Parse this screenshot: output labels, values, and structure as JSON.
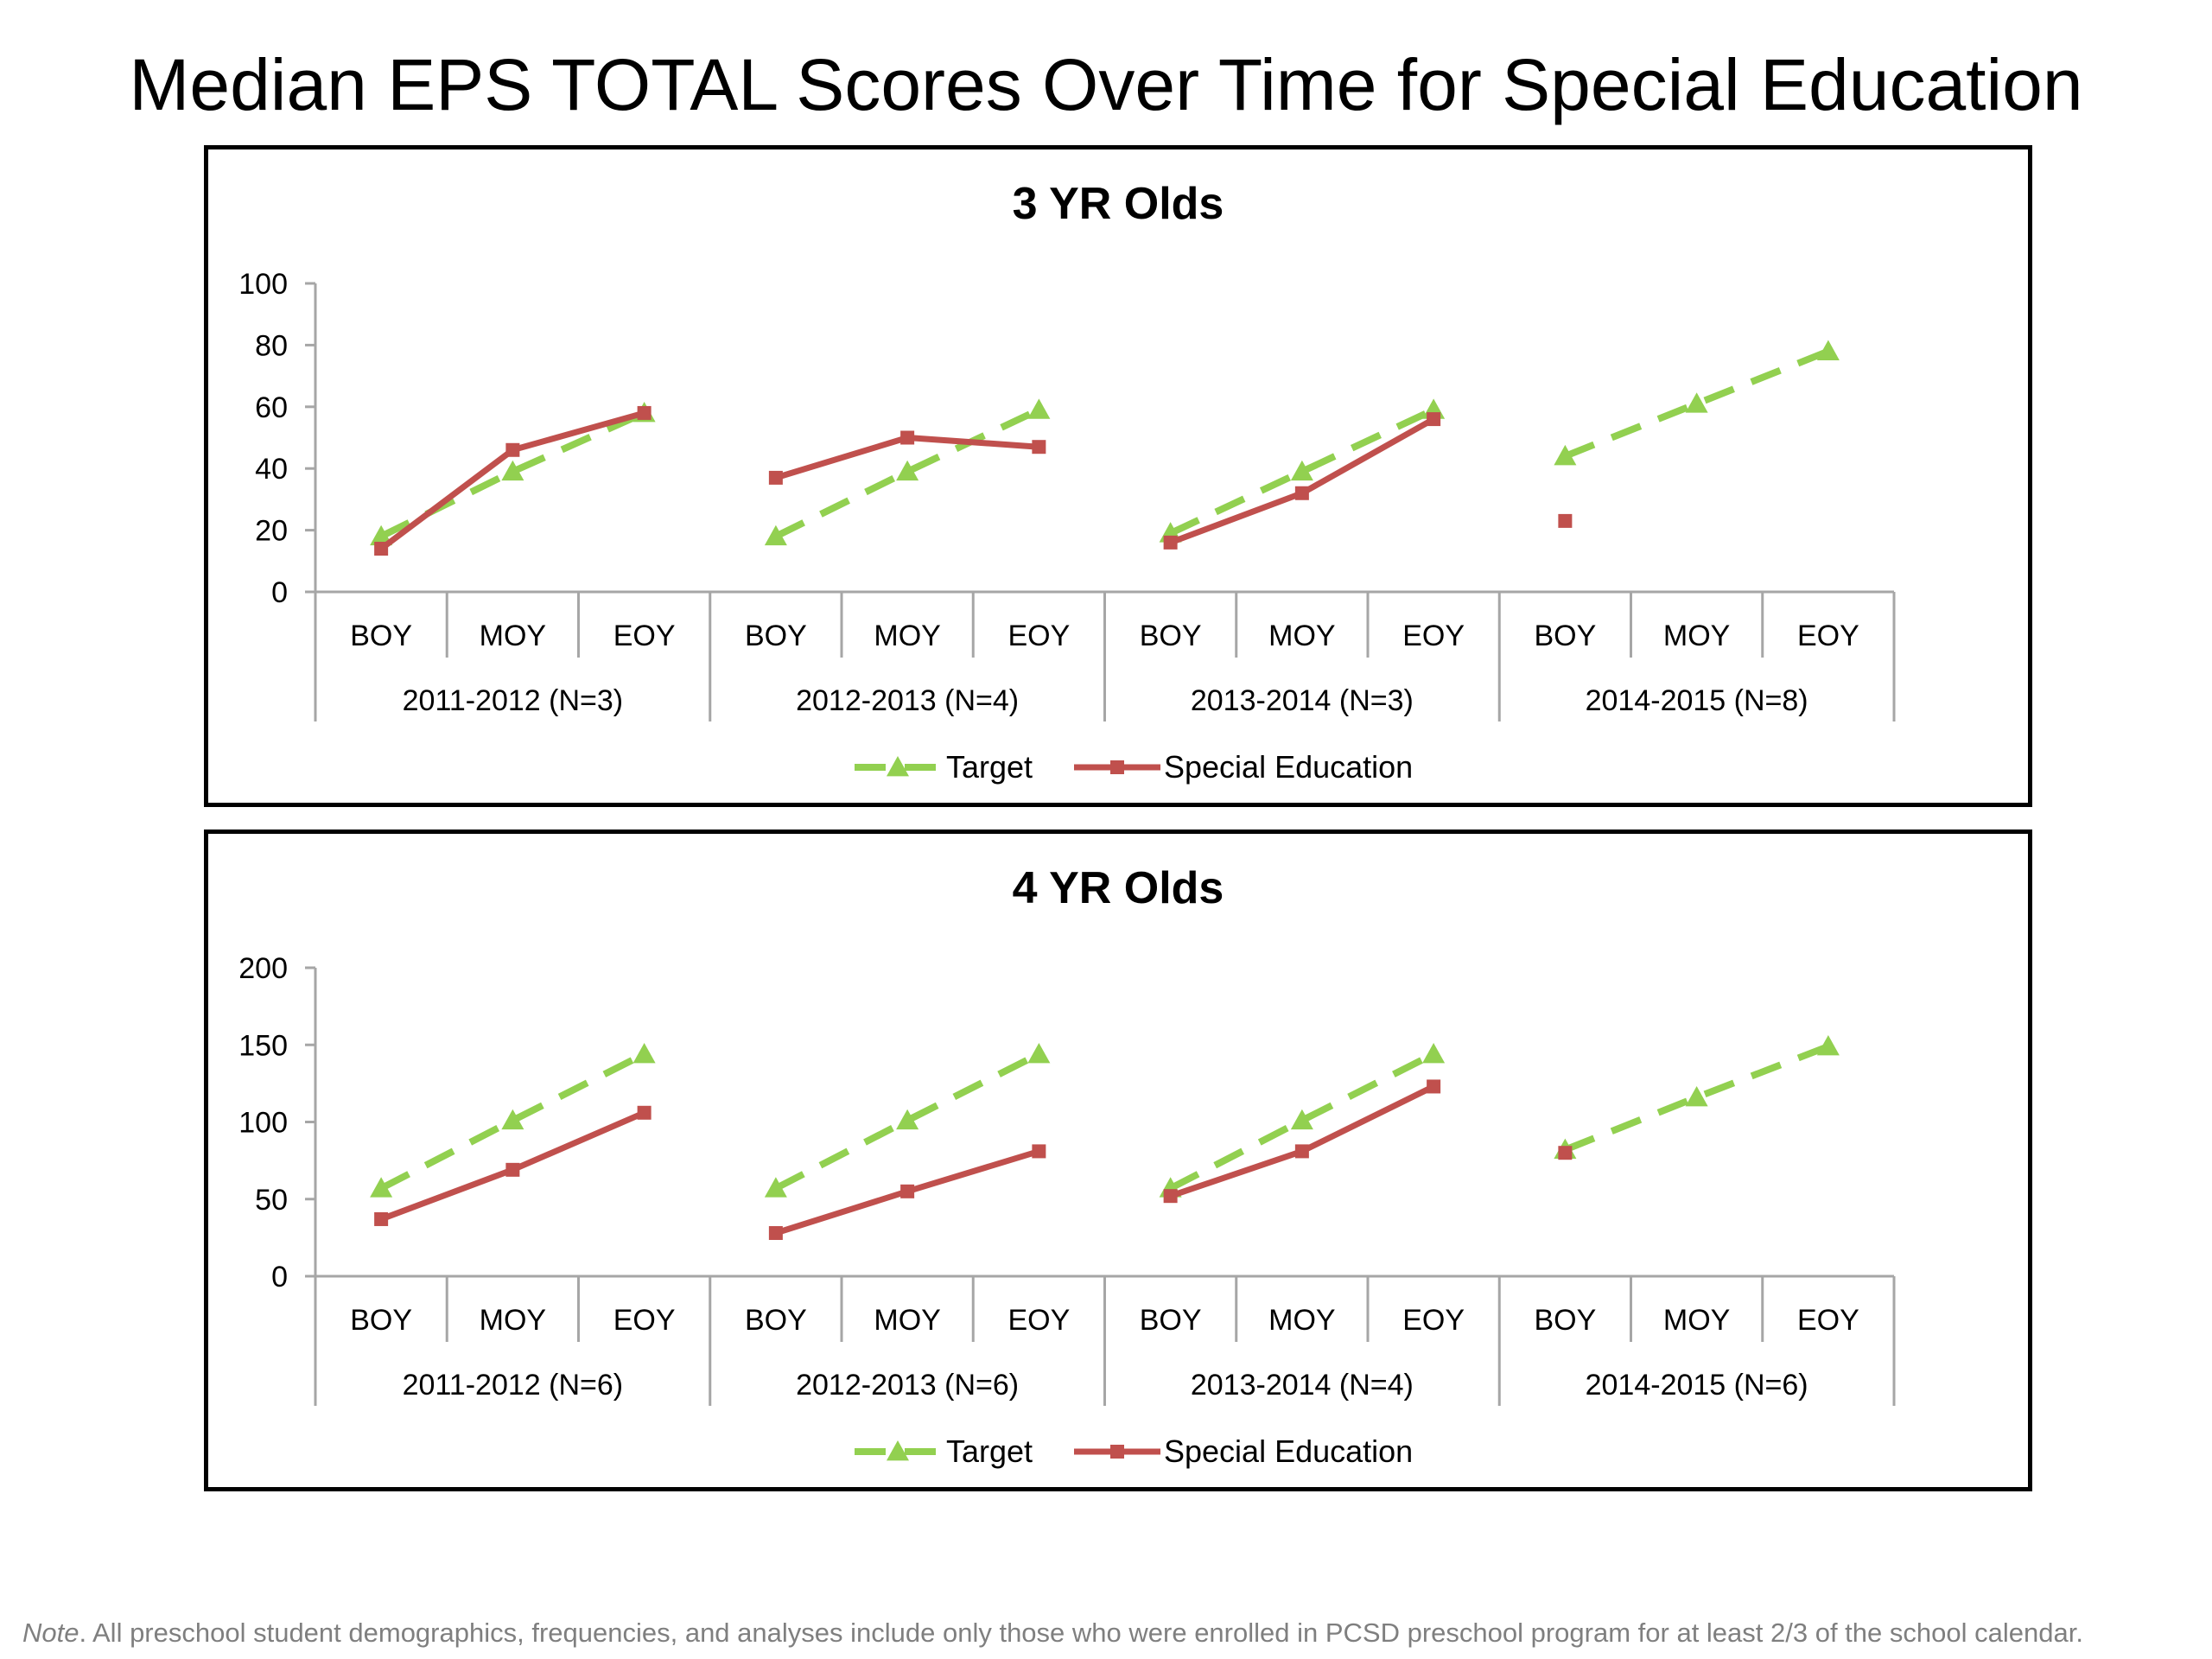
{
  "page": {
    "title": "Median EPS TOTAL Scores Over Time for Special Education",
    "footnote_prefix": "Note",
    "footnote_text": ". All preschool student demographics, frequencies, and analyses include only those who were enrolled in PCSD preschool program for at least 2/3 of the school calendar."
  },
  "colors": {
    "target": "#92D050",
    "special_education": "#C0504D",
    "axis": "#A6A6A6"
  },
  "chart_data": [
    {
      "type": "line",
      "title": "3 YR Olds",
      "categories": [
        "BOY",
        "MOY",
        "EOY",
        "BOY",
        "MOY",
        "EOY",
        "BOY",
        "MOY",
        "EOY",
        "BOY",
        "MOY",
        "EOY"
      ],
      "groups": [
        "2011-2012 (N=3)",
        "2012-2013 (N=4)",
        "2013-2014 (N=3)",
        "2014-2015 (N=8)"
      ],
      "yticks": [
        "0",
        "20",
        "40",
        "60",
        "80",
        "100"
      ],
      "ylim": [
        0,
        100
      ],
      "series": [
        {
          "name": "Target",
          "style": "dashed-triangle",
          "values": [
            18,
            39,
            58,
            18,
            39,
            59,
            19,
            39,
            59,
            44,
            61,
            78
          ]
        },
        {
          "name": "Special Education",
          "style": "solid-square",
          "values": [
            14,
            46,
            58,
            37,
            50,
            47,
            16,
            32,
            56,
            23,
            null,
            null
          ]
        }
      ],
      "segment_breaks_after": [
        2,
        5,
        8
      ],
      "legend_position": "bottom"
    },
    {
      "type": "line",
      "title": "4 YR Olds",
      "categories": [
        "BOY",
        "MOY",
        "EOY",
        "BOY",
        "MOY",
        "EOY",
        "BOY",
        "MOY",
        "EOY",
        "BOY",
        "MOY",
        "EOY"
      ],
      "groups": [
        "2011-2012 (N=6)",
        "2012-2013 (N=6)",
        "2013-2014 (N=4)",
        "2014-2015 (N=6)"
      ],
      "yticks": [
        "0",
        "50",
        "100",
        "150",
        "200"
      ],
      "ylim": [
        0,
        200
      ],
      "series": [
        {
          "name": "Target",
          "style": "dashed-triangle",
          "values": [
            57,
            101,
            144,
            57,
            101,
            144,
            57,
            101,
            144,
            82,
            116,
            149
          ]
        },
        {
          "name": "Special Education",
          "style": "solid-square",
          "values": [
            37,
            69,
            106,
            28,
            55,
            81,
            52,
            81,
            123,
            80,
            null,
            null
          ]
        }
      ],
      "segment_breaks_after": [
        2,
        5,
        8
      ],
      "legend_position": "bottom"
    }
  ]
}
